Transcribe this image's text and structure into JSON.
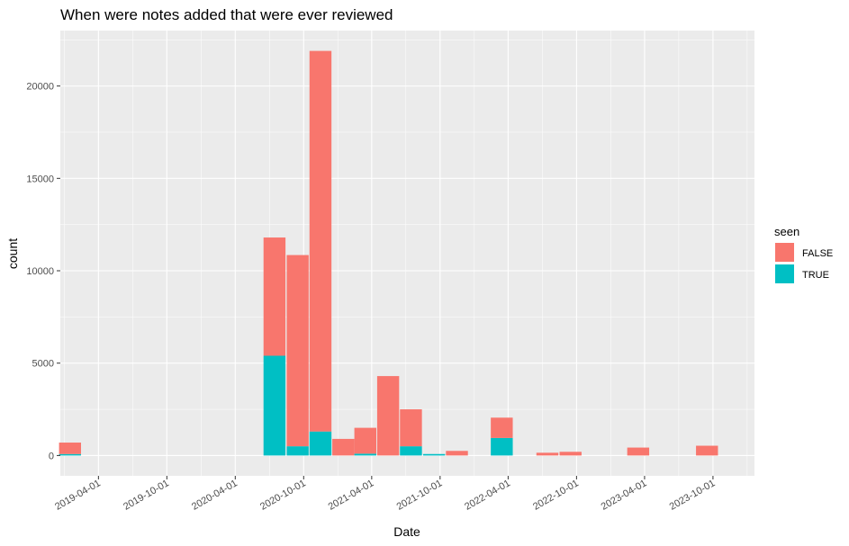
{
  "chart_data": {
    "type": "bar",
    "stacked": true,
    "title": "When were notes added that were ever reviewed",
    "xlabel": "Date",
    "ylabel": "count",
    "x_tick_labels": [
      "2019-04-01",
      "2019-10-01",
      "2020-04-01",
      "2020-10-01",
      "2021-04-01",
      "2021-10-01",
      "2022-04-01",
      "2022-10-01",
      "2023-04-01",
      "2023-10-01"
    ],
    "y_ticks": [
      0,
      5000,
      10000,
      15000,
      20000
    ],
    "ylim": [
      -1100,
      23000
    ],
    "bin_width_months": 2,
    "legend": {
      "title": "seen",
      "position": "right",
      "entries": [
        {
          "label": "FALSE",
          "color": "#F8766D"
        },
        {
          "label": "TRUE",
          "color": "#00BFC4"
        }
      ]
    },
    "bins": [
      {
        "center": "2019-01-15",
        "false": 620,
        "true": 80
      },
      {
        "center": "2020-07-15",
        "false": 6400,
        "true": 5400
      },
      {
        "center": "2020-09-15",
        "false": 10350,
        "true": 500
      },
      {
        "center": "2020-11-15",
        "false": 20600,
        "true": 1300
      },
      {
        "center": "2021-01-15",
        "false": 900,
        "true": 0
      },
      {
        "center": "2021-03-15",
        "false": 1400,
        "true": 100
      },
      {
        "center": "2021-05-15",
        "false": 4300,
        "true": 0
      },
      {
        "center": "2021-07-15",
        "false": 2000,
        "true": 500
      },
      {
        "center": "2021-09-15",
        "false": 0,
        "true": 80
      },
      {
        "center": "2021-11-15",
        "false": 250,
        "true": 0
      },
      {
        "center": "2022-03-15",
        "false": 1100,
        "true": 950
      },
      {
        "center": "2022-07-15",
        "false": 150,
        "true": 0
      },
      {
        "center": "2022-09-15",
        "false": 200,
        "true": 0
      },
      {
        "center": "2023-03-15",
        "false": 430,
        "true": 0
      },
      {
        "center": "2023-09-15",
        "false": 530,
        "true": 0
      }
    ]
  }
}
